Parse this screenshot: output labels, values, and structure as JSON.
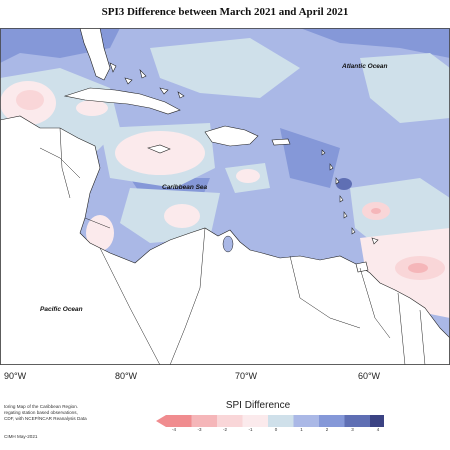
{
  "title": "SPI3 Difference between March 2021 and April 2021",
  "labels": {
    "atlantic": "Atlantic Ocean",
    "caribbean": "Caribbean Sea",
    "pacific": "Pacific Ocean"
  },
  "longitudes": [
    "90°W",
    "80°W",
    "70°W",
    "60°W"
  ],
  "legend": {
    "title": "SPI Difference",
    "ticks": [
      "-4",
      "-3",
      "-2",
      "-1",
      "0",
      "1",
      "2",
      "3",
      "4"
    ],
    "colors": [
      "#f08c8f",
      "#f5b6b9",
      "#f9d6d8",
      "#fbeaec",
      "#cfe0ea",
      "#aab8e6",
      "#8598d8",
      "#5f6fb4",
      "#3b4383"
    ]
  },
  "credit": {
    "lines": [
      "toring Map of the Caribbean Region.",
      "regating station based observations,",
      "CDF, with NCEP/NCAR Reanalysis Data"
    ],
    "footer": "CIMH May-2021"
  }
}
